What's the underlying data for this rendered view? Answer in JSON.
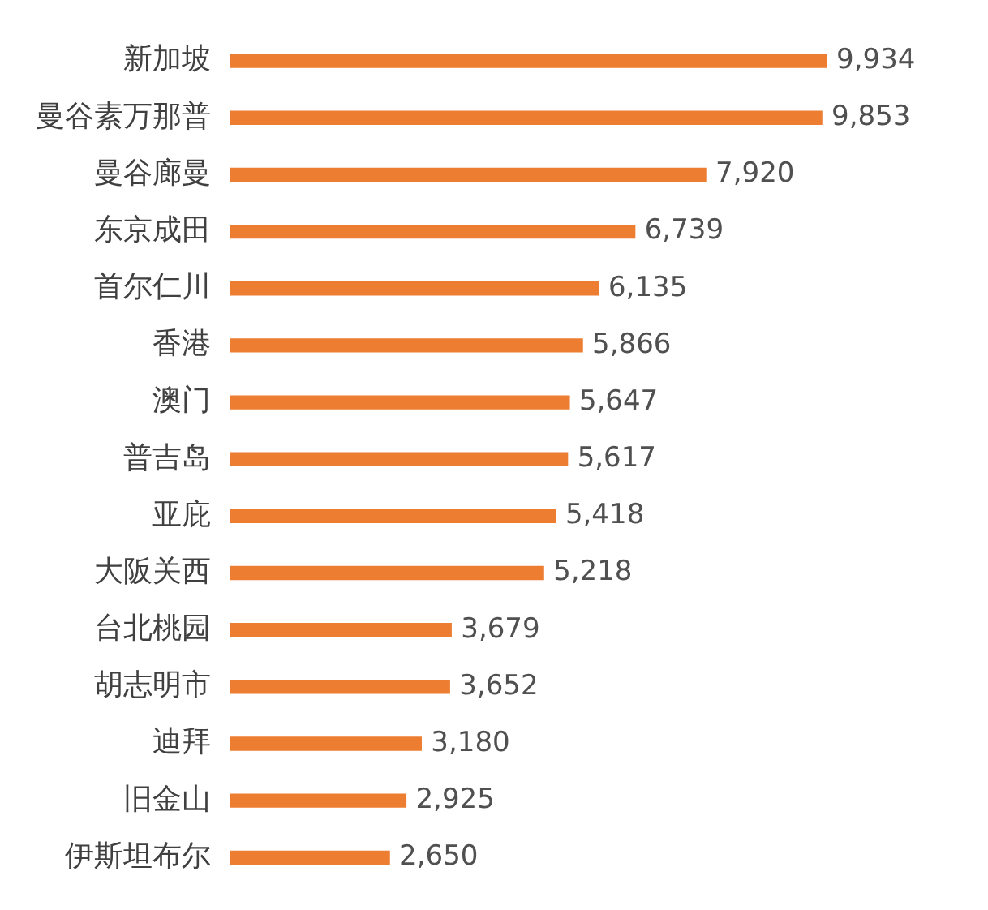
{
  "chart_data": {
    "type": "bar",
    "orientation": "horizontal",
    "categories": [
      "新加坡",
      "曼谷素万那普",
      "曼谷廊曼",
      "东京成田",
      "首尔仁川",
      "香港",
      "澳门",
      "普吉岛",
      "亚庇",
      "大阪关西",
      "台北桃园",
      "胡志明市",
      "迪拜",
      "旧金山",
      "伊斯坦布尔"
    ],
    "values": [
      9934,
      9853,
      7920,
      6739,
      6135,
      5866,
      5647,
      5617,
      5418,
      5218,
      3679,
      3652,
      3180,
      2925,
      2650
    ],
    "value_labels": [
      "9,934",
      "9,853",
      "7,920",
      "6,739",
      "6,135",
      "5,866",
      "5,647",
      "5,617",
      "5,418",
      "5,218",
      "3,679",
      "3,652",
      "3,180",
      "2,925",
      "2,650"
    ],
    "color": "#ed7d31",
    "legend": false,
    "tick_labels": "y"
  }
}
